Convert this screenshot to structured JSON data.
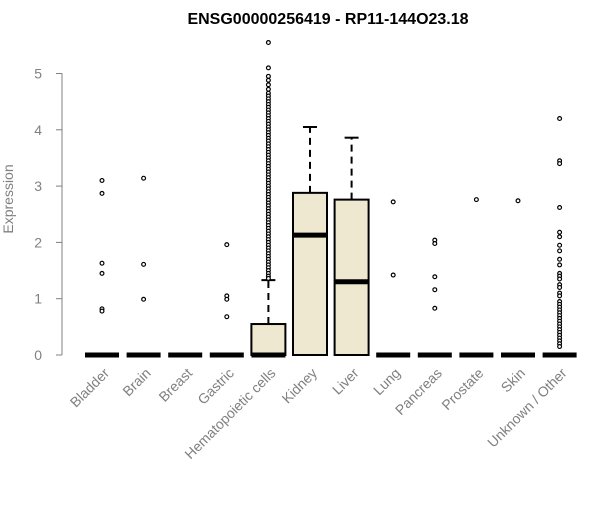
{
  "chart_data": {
    "type": "boxplot",
    "title": "ENSG00000256419 - RP11-144O23.18",
    "ylabel": "Expression",
    "xlabel": "",
    "ylim": [
      0,
      5.6
    ],
    "yticks": [
      0,
      1,
      2,
      3,
      4,
      5
    ],
    "grid": false,
    "box_fill": "#EEE8D0",
    "categories": [
      "Bladder",
      "Brain",
      "Breast",
      "Gastric",
      "Hematopoietic cells",
      "Kidney",
      "Liver",
      "Lung",
      "Pancreas",
      "Prostate",
      "Skin",
      "Unknown / Other"
    ],
    "boxes": [
      {
        "q1": 0,
        "median": 0,
        "q3": 0,
        "whisker_low": 0,
        "whisker_high": 0,
        "outliers": [
          3.1,
          2.87,
          1.63,
          1.45,
          0.82,
          0.78
        ]
      },
      {
        "q1": 0,
        "median": 0,
        "q3": 0,
        "whisker_low": 0,
        "whisker_high": 0,
        "outliers": [
          3.14,
          1.61,
          0.99
        ]
      },
      {
        "q1": 0,
        "median": 0,
        "q3": 0,
        "whisker_low": 0,
        "whisker_high": 0,
        "outliers": []
      },
      {
        "q1": 0,
        "median": 0,
        "q3": 0,
        "whisker_low": 0,
        "whisker_high": 0,
        "outliers": [
          1.96,
          1.05,
          0.99,
          0.68
        ]
      },
      {
        "q1": 0,
        "median": 0,
        "q3": 0.55,
        "whisker_low": 0,
        "whisker_high": 1.33,
        "outliers": [
          5.55,
          5.1,
          4.95,
          4.88,
          4.8,
          4.72,
          4.65,
          4.6,
          4.55,
          4.5,
          4.45,
          4.4,
          4.35,
          4.3,
          4.25,
          4.2,
          4.15,
          4.1,
          4.05,
          4.0,
          3.95,
          3.9,
          3.85,
          3.8,
          3.75,
          3.7,
          3.65,
          3.6,
          3.55,
          3.5,
          3.45,
          3.4,
          3.35,
          3.3,
          3.25,
          3.2,
          3.15,
          3.1,
          3.05,
          3.0,
          2.95,
          2.9,
          2.85,
          2.8,
          2.75,
          2.7,
          2.65,
          2.6,
          2.55,
          2.5,
          2.45,
          2.4,
          2.35,
          2.3,
          2.25,
          2.2,
          2.15,
          2.1,
          2.05,
          2.0,
          1.95,
          1.9,
          1.85,
          1.8,
          1.75,
          1.7,
          1.65,
          1.6,
          1.55,
          1.5,
          1.45,
          1.4,
          1.36
        ]
      },
      {
        "q1": 0,
        "median": 2.13,
        "q3": 2.88,
        "whisker_low": 0,
        "whisker_high": 4.05,
        "outliers": []
      },
      {
        "q1": 0,
        "median": 1.3,
        "q3": 2.76,
        "whisker_low": 0,
        "whisker_high": 3.86,
        "outliers": []
      },
      {
        "q1": 0,
        "median": 0,
        "q3": 0,
        "whisker_low": 0,
        "whisker_high": 0,
        "outliers": [
          2.72,
          1.42
        ]
      },
      {
        "q1": 0,
        "median": 0,
        "q3": 0,
        "whisker_low": 0,
        "whisker_high": 0,
        "outliers": [
          2.04,
          1.98,
          1.39,
          1.16,
          0.83
        ]
      },
      {
        "q1": 0,
        "median": 0,
        "q3": 0,
        "whisker_low": 0,
        "whisker_high": 0,
        "outliers": [
          2.76
        ]
      },
      {
        "q1": 0,
        "median": 0,
        "q3": 0,
        "whisker_low": 0,
        "whisker_high": 0,
        "outliers": [
          2.74
        ]
      },
      {
        "q1": 0,
        "median": 0,
        "q3": 0,
        "whisker_low": 0,
        "whisker_high": 0,
        "outliers": [
          4.2,
          3.45,
          3.4,
          2.62,
          2.18,
          2.1,
          1.95,
          1.85,
          1.7,
          1.6,
          1.45,
          1.4,
          1.35,
          1.25,
          1.2,
          1.1,
          1.05,
          0.95,
          0.9,
          0.85,
          0.8,
          0.75,
          0.7,
          0.65,
          0.6,
          0.55,
          0.5,
          0.45,
          0.4,
          0.35,
          0.3,
          0.25,
          0.2,
          0.15
        ]
      }
    ]
  }
}
